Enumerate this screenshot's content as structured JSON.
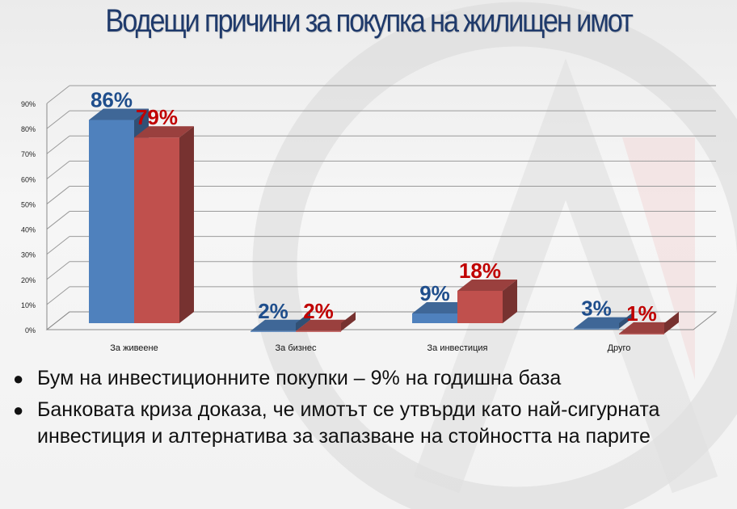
{
  "title": "Водещи причини за покупка на жилищен имот",
  "colors": {
    "blue": "#4f81bd",
    "red": "#c0504d",
    "blue_label": "#1f4e8c",
    "red_label": "#c00000"
  },
  "chart_data": {
    "type": "bar",
    "categories": [
      "За живеене",
      "За бизнес",
      "За инвестиция",
      "Друго"
    ],
    "series": [
      {
        "values": [
          86,
          2,
          9,
          3
        ],
        "labels": [
          "86%",
          "2%",
          "9%",
          "3%"
        ]
      },
      {
        "values": [
          79,
          2,
          18,
          1
        ],
        "labels": [
          "79%",
          "2%",
          "18%",
          "1%"
        ]
      }
    ],
    "y_ticks": [
      "0%",
      "10%",
      "20%",
      "30%",
      "40%",
      "50%",
      "60%",
      "70%",
      "80%",
      "90%"
    ],
    "ylim": [
      0,
      90
    ],
    "grid": true,
    "three_d": true
  },
  "bullets": [
    "Бум на инвестиционните покупки – 9% на годишна база",
    "Банковата криза доказа, че имотът се утвърди като най-сигурната инвестиция и алтернатива за запазване на стойността на парите"
  ]
}
